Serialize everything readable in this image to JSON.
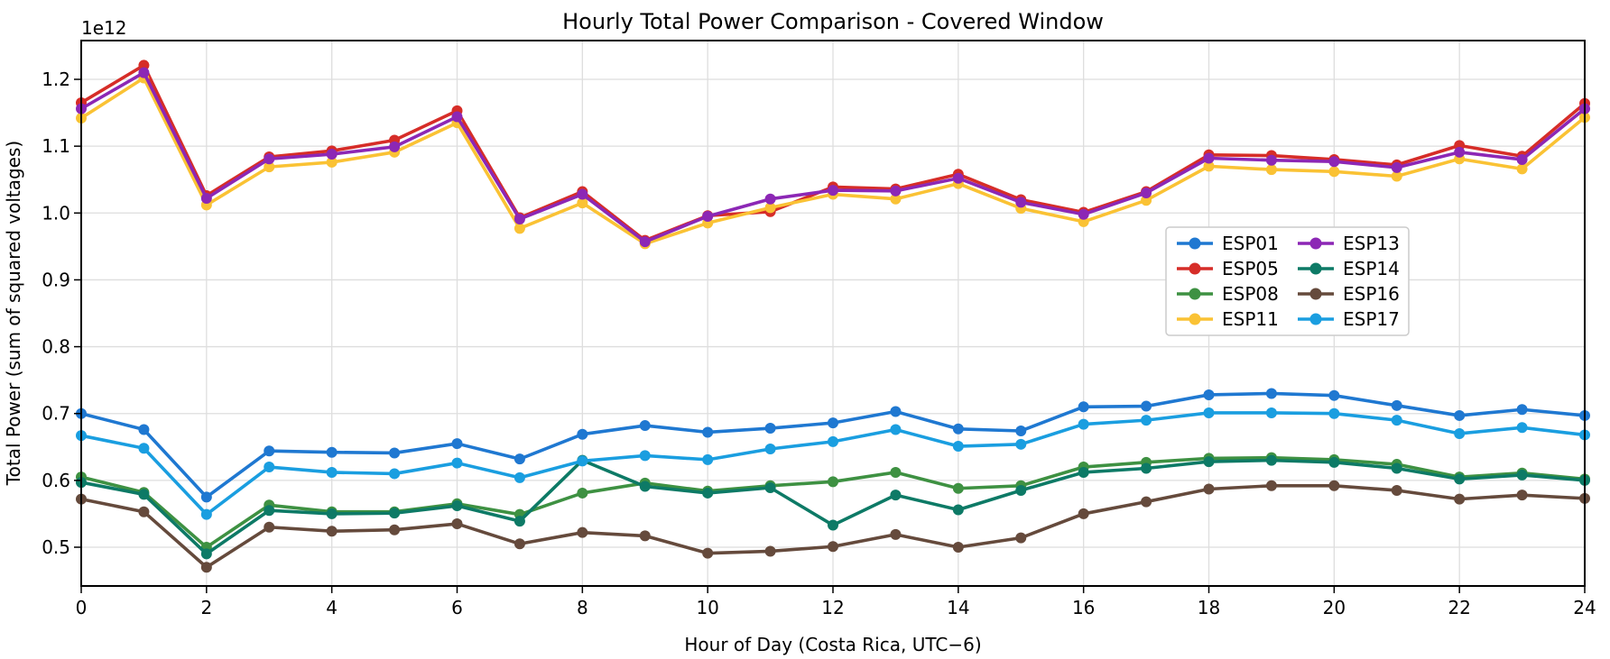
{
  "chart_data": {
    "type": "line",
    "title": "Hourly Total Power Comparison - Covered Window",
    "xlabel": "Hour of Day (Costa Rica, UTC−6)",
    "ylabel": "Total Power (sum of squared voltages)",
    "offset_text": "1e12",
    "units": "values are in units of 1e12 (sum of squared voltages)",
    "grid": true,
    "legend_position": "center-right",
    "legend_columns": 2,
    "xlim": [
      0,
      24
    ],
    "ylim": [
      0.442,
      1.258
    ],
    "xticks": [
      0,
      2,
      4,
      6,
      8,
      10,
      12,
      14,
      16,
      18,
      20,
      22,
      24
    ],
    "yticks": [
      0.5,
      0.6,
      0.7,
      0.8,
      0.9,
      1.0,
      1.1,
      1.2
    ],
    "x": [
      0,
      1,
      2,
      3,
      4,
      5,
      6,
      7,
      8,
      9,
      10,
      11,
      12,
      13,
      14,
      15,
      16,
      17,
      18,
      19,
      20,
      21,
      22,
      23,
      24
    ],
    "series": [
      {
        "name": "ESP01",
        "color": "#1f78d1",
        "values": [
          0.7,
          0.676,
          0.575,
          0.644,
          0.642,
          0.641,
          0.655,
          0.632,
          0.669,
          0.682,
          0.672,
          0.678,
          0.686,
          0.703,
          0.677,
          0.674,
          0.71,
          0.711,
          0.728,
          0.73,
          0.727,
          0.712,
          0.697,
          0.706,
          0.697
        ]
      },
      {
        "name": "ESP05",
        "color": "#d62d28",
        "values": [
          1.165,
          1.221,
          1.026,
          1.084,
          1.093,
          1.109,
          1.153,
          0.993,
          1.032,
          0.959,
          0.996,
          1.002,
          1.039,
          1.036,
          1.058,
          1.02,
          1.001,
          1.032,
          1.087,
          1.086,
          1.08,
          1.072,
          1.101,
          1.085,
          1.164
        ]
      },
      {
        "name": "ESP08",
        "color": "#3e9142",
        "values": [
          0.605,
          0.582,
          0.5,
          0.563,
          0.553,
          0.553,
          0.565,
          0.549,
          0.581,
          0.596,
          0.584,
          0.592,
          0.598,
          0.612,
          0.588,
          0.592,
          0.62,
          0.627,
          0.633,
          0.634,
          0.631,
          0.624,
          0.605,
          0.611,
          0.602
        ]
      },
      {
        "name": "ESP11",
        "color": "#fac234",
        "values": [
          1.142,
          1.202,
          1.012,
          1.069,
          1.076,
          1.091,
          1.135,
          0.977,
          1.015,
          0.954,
          0.985,
          1.008,
          1.028,
          1.021,
          1.044,
          1.007,
          0.987,
          1.019,
          1.07,
          1.065,
          1.062,
          1.055,
          1.081,
          1.066,
          1.143
        ]
      },
      {
        "name": "ESP13",
        "color": "#8c27b5",
        "values": [
          1.156,
          1.21,
          1.022,
          1.081,
          1.088,
          1.099,
          1.144,
          0.991,
          1.028,
          0.957,
          0.995,
          1.021,
          1.034,
          1.033,
          1.052,
          1.016,
          0.998,
          1.03,
          1.082,
          1.079,
          1.077,
          1.068,
          1.091,
          1.08,
          1.156
        ]
      },
      {
        "name": "ESP14",
        "color": "#0d7a66",
        "values": [
          0.597,
          0.579,
          0.49,
          0.555,
          0.55,
          0.551,
          0.562,
          0.539,
          0.63,
          0.591,
          0.581,
          0.589,
          0.533,
          0.578,
          0.556,
          0.585,
          0.612,
          0.618,
          0.628,
          0.63,
          0.627,
          0.618,
          0.602,
          0.608,
          0.6
        ]
      },
      {
        "name": "ESP16",
        "color": "#654a3c",
        "values": [
          0.572,
          0.553,
          0.47,
          0.53,
          0.524,
          0.526,
          0.535,
          0.505,
          0.522,
          0.517,
          0.491,
          0.494,
          0.501,
          0.519,
          0.5,
          0.514,
          0.55,
          0.568,
          0.587,
          0.592,
          0.592,
          0.585,
          0.572,
          0.578,
          0.573
        ]
      },
      {
        "name": "ESP17",
        "color": "#1a9ee0",
        "values": [
          0.667,
          0.648,
          0.549,
          0.62,
          0.612,
          0.61,
          0.626,
          0.604,
          0.629,
          0.637,
          0.631,
          0.647,
          0.658,
          0.676,
          0.651,
          0.654,
          0.684,
          0.69,
          0.701,
          0.701,
          0.7,
          0.69,
          0.67,
          0.679,
          0.668
        ]
      }
    ]
  }
}
